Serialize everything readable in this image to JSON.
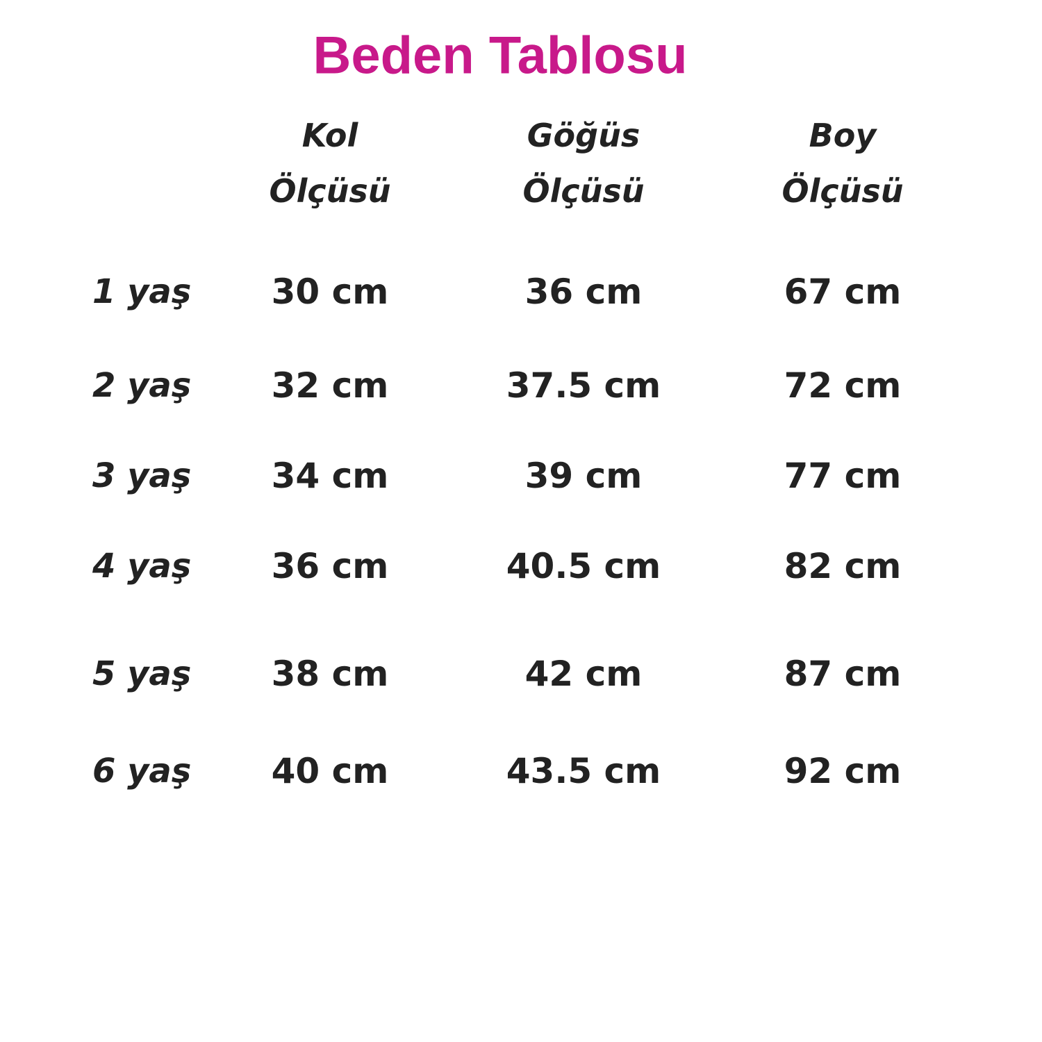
{
  "header": {
    "title": "Beden Tablosu"
  },
  "table": {
    "columns": [
      [
        "Kol",
        "Ölçüsü"
      ],
      [
        "Göğüs",
        "Ölçüsü"
      ],
      [
        "Boy",
        "Ölçüsü"
      ]
    ],
    "rows": [
      {
        "label": "1 yaş",
        "cells": [
          "30 cm",
          "36 cm",
          "67 cm"
        ]
      },
      {
        "label": "2 yaş",
        "cells": [
          "32 cm",
          "37.5 cm",
          "72 cm"
        ]
      },
      {
        "label": "3 yaş",
        "cells": [
          "34 cm",
          "39 cm",
          "77 cm"
        ]
      },
      {
        "label": "4 yaş",
        "cells": [
          "36 cm",
          "40.5 cm",
          "82 cm"
        ]
      },
      {
        "label": "5 yaş",
        "cells": [
          "38 cm",
          "42 cm",
          "87 cm"
        ]
      },
      {
        "label": "6 yaş",
        "cells": [
          "40 cm",
          "43.5 cm",
          "92 cm"
        ]
      }
    ]
  }
}
